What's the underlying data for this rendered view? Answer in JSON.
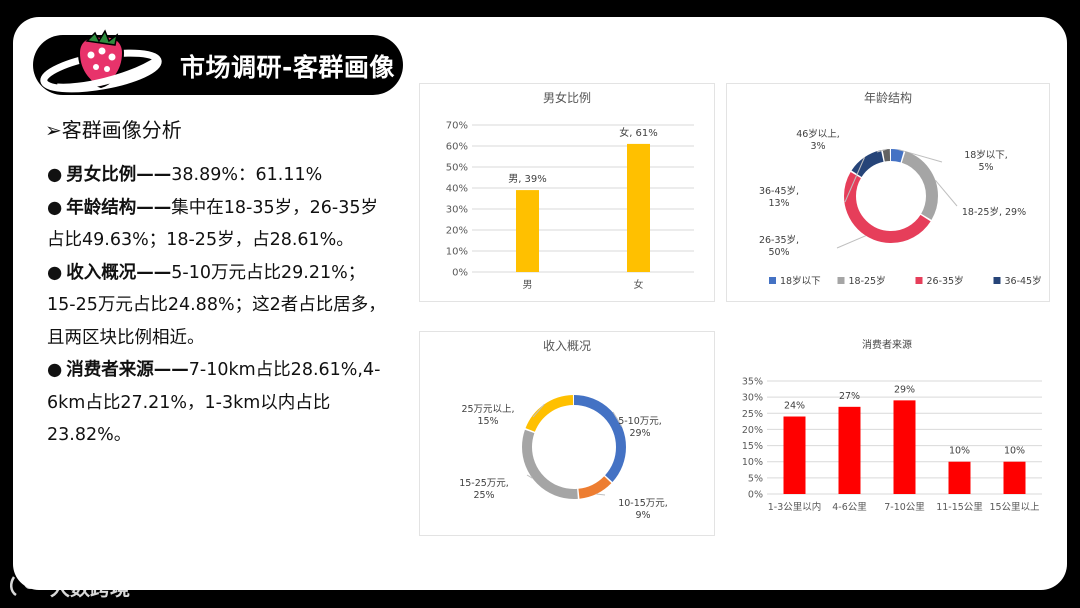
{
  "slide": {
    "title": "市场调研-客群画像",
    "subheading": "客群画像分析",
    "bullets": [
      {
        "key": "男女比例——",
        "text": "38.89%：61.11%"
      },
      {
        "key": "年龄结构——",
        "text": "集中在18-35岁，26-35岁占比49.63%；18-25岁，占28.61%。"
      },
      {
        "key": "收入概况——",
        "text": "5-10万元占比29.21%；15-25万元占比24.88%；这2者占比居多，且两区块比例相近。"
      },
      {
        "key": "消费者来源——",
        "text": "7-10km占比28.61%,4-6km占比27.21%，1-3km以内占比23.82%。"
      }
    ]
  },
  "watermark": {
    "text": "大数跨境"
  },
  "colors": {
    "gold": "#FFC000",
    "blue": "#4472C4",
    "gray": "#A5A5A5",
    "crimson": "#E63E5A",
    "navy": "#264478",
    "dark_gray": "#636363",
    "orange": "#ED7D31",
    "red": "#FF0000"
  },
  "chart_data": [
    {
      "type": "bar",
      "title": "男女比例",
      "categories": [
        "男",
        "女"
      ],
      "values": [
        39,
        61
      ],
      "data_labels": [
        "男, 39%",
        "女, 61%"
      ],
      "ylim": [
        0,
        70
      ],
      "y_ticks": [
        "0%",
        "10%",
        "20%",
        "30%",
        "40%",
        "50%",
        "60%",
        "70%"
      ],
      "color": "#FFC000",
      "grid": true
    },
    {
      "type": "pie",
      "donut": true,
      "title": "年龄结构",
      "categories": [
        "18岁以下",
        "18-25岁",
        "26-35岁",
        "36-45岁",
        "46岁以上"
      ],
      "values": [
        5,
        29,
        50,
        13,
        3
      ],
      "data_labels": [
        [
          "18岁以下,",
          "5%"
        ],
        [
          "18-25岁, 29%"
        ],
        [
          "26-35岁,",
          "50%"
        ],
        [
          "36-45岁,",
          "13%"
        ],
        [
          "46岁以上,",
          "3%"
        ]
      ],
      "colors": [
        "#4472C4",
        "#A5A5A5",
        "#E63E5A",
        "#264478",
        "#636363"
      ],
      "legend": "bottom"
    },
    {
      "type": "pie",
      "donut": true,
      "title": "收入概况",
      "categories": [
        "5-10万元",
        "10-15万元",
        "15-25万元",
        "25万元以上"
      ],
      "values": [
        29,
        9,
        25,
        15
      ],
      "data_labels": [
        [
          "5-10万元,",
          "29%"
        ],
        [
          "10-15万元,",
          "9%"
        ],
        [
          "15-25万元,",
          "25%"
        ],
        [
          "25万元以上,",
          "15%"
        ]
      ],
      "colors": [
        "#4472C4",
        "#ED7D31",
        "#A5A5A5",
        "#FFC000"
      ]
    },
    {
      "type": "bar",
      "title": "消费者来源",
      "categories": [
        "1-3公里以内",
        "4-6公里",
        "7-10公里",
        "11-15公里",
        "15公里以上"
      ],
      "values": [
        24,
        27,
        29,
        10,
        10
      ],
      "data_labels": [
        "24%",
        "27%",
        "29%",
        "10%",
        "10%"
      ],
      "ylim": [
        0,
        35
      ],
      "y_ticks": [
        "0%",
        "5%",
        "10%",
        "15%",
        "20%",
        "25%",
        "30%",
        "35%"
      ],
      "color": "#FF0000",
      "grid": true
    }
  ]
}
